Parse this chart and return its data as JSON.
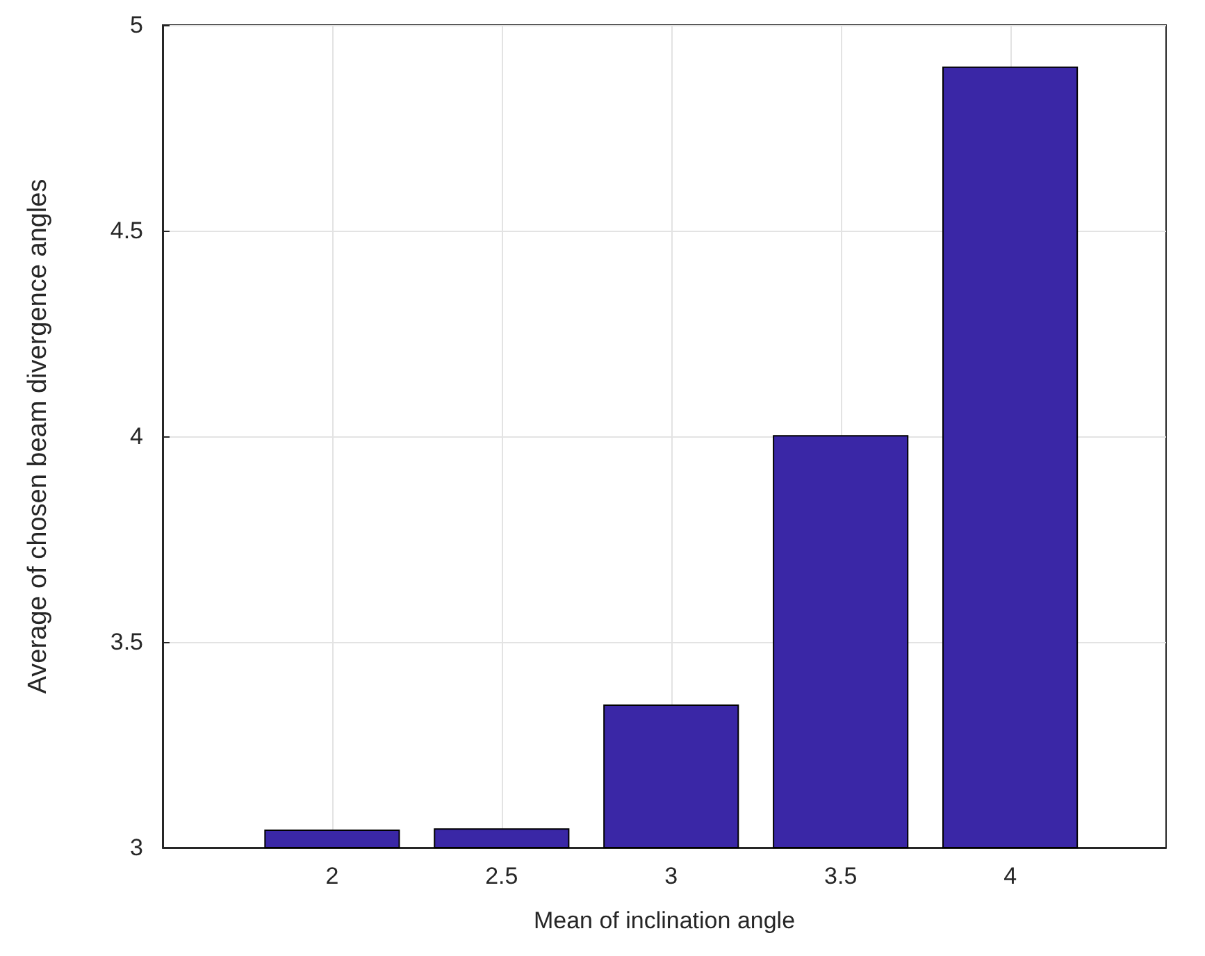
{
  "chart_data": {
    "type": "bar",
    "xlabel": "Mean of inclination angle",
    "ylabel": "Average of chosen beam divergence angles",
    "x": [
      2,
      2.5,
      3,
      3.5,
      4
    ],
    "values": [
      3.044,
      3.047,
      3.348,
      4.003,
      4.899
    ],
    "color": "#3a27a6",
    "xlim": [
      1.5,
      4.46
    ],
    "xticks": [
      2,
      2.5,
      3,
      3.5,
      4
    ],
    "ylim": [
      3,
      5
    ],
    "yticks": [
      3,
      3.5,
      4,
      4.5,
      5
    ],
    "grid": true
  }
}
